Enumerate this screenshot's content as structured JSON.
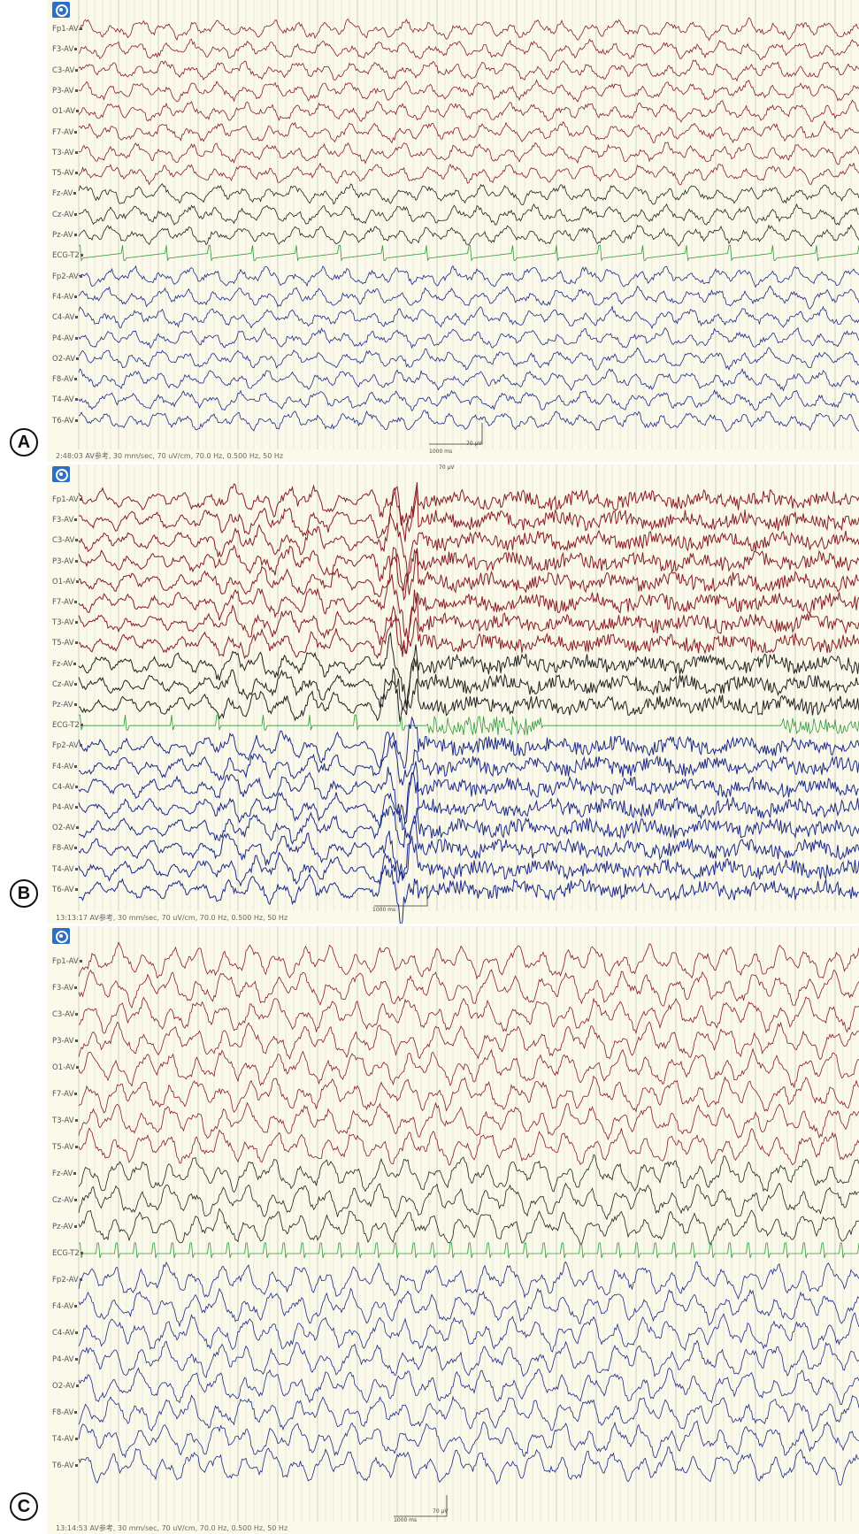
{
  "channels": [
    "Fp1-AV",
    "F3-AV",
    "C3-AV",
    "P3-AV",
    "O1-AV",
    "F7-AV",
    "T3-AV",
    "T5-AV",
    "Fz-AV",
    "Cz-AV",
    "Pz-AV",
    "ECG-T2",
    "Fp2-AV",
    "F4-AV",
    "C4-AV",
    "P4-AV",
    "O2-AV",
    "F8-AV",
    "T4-AV",
    "T6-AV"
  ],
  "colors": {
    "left": "#8b1c24",
    "mid": "#222222",
    "ecg": "#2e9a3a",
    "right": "#1c2a8c",
    "grid": "#cfcfc7",
    "bg": "#fbf9ea"
  },
  "panels": [
    {
      "letter": "A",
      "footer": "2:48:03 AV参考, 30 mm/sec, 70 uV/cm, 70.0 Hz, 0.500 Hz, 50 Hz",
      "scale_time": "1000 ms",
      "scale_amp": "70 µV"
    },
    {
      "letter": "B",
      "footer": "13:13:17 AV参考, 30 mm/sec, 70 uV/cm, 70.0 Hz, 0.500 Hz, 50 Hz",
      "scale_time": "1000 ms",
      "scale_amp": "70 µV"
    },
    {
      "letter": "C",
      "footer": "13:14:53 AV参考, 30 mm/sec, 70 uV/cm, 70.0 Hz, 0.500 Hz, 50 Hz",
      "scale_time": "1000 ms",
      "scale_amp": "70 µV"
    }
  ]
}
